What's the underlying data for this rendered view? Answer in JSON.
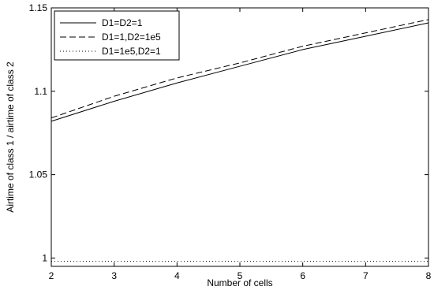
{
  "chart_data": {
    "type": "line",
    "title": "",
    "xlabel": "Number of cells",
    "ylabel": "Airtime of class 1 / airtime of class 2",
    "xlim": [
      2,
      8
    ],
    "ylim": [
      0.995,
      1.15
    ],
    "xticks": [
      2,
      3,
      4,
      5,
      6,
      7,
      8
    ],
    "yticks": [
      1,
      1.05,
      1.1,
      1.15
    ],
    "ytick_labels": [
      "1",
      "1.05",
      "1.1",
      "1.15"
    ],
    "grid": false,
    "legend_position": "top-left",
    "x": [
      2,
      3,
      4,
      5,
      6,
      7,
      8
    ],
    "series": [
      {
        "name": "D1=D2=1",
        "style": "solid",
        "values": [
          1.082,
          1.094,
          1.105,
          1.115,
          1.125,
          1.133,
          1.141
        ]
      },
      {
        "name": "D1=1,D2=1e5",
        "style": "dashed",
        "values": [
          1.084,
          1.097,
          1.108,
          1.117,
          1.127,
          1.135,
          1.143
        ]
      },
      {
        "name": "D1=1e5,D2=1",
        "style": "dotted",
        "values": [
          0.998,
          0.998,
          0.998,
          0.998,
          0.998,
          0.998,
          0.998
        ]
      }
    ]
  }
}
